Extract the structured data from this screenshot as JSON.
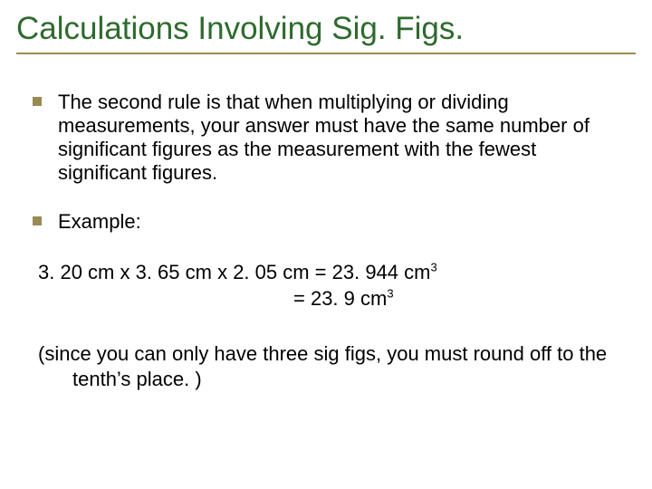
{
  "colors": {
    "title": "#2e6a2e",
    "underline": "#9a8b54",
    "bullet": "#9a8b54",
    "body": "#000000",
    "background": "#ffffff"
  },
  "title": "Calculations Involving Sig. Figs.",
  "bullets": [
    {
      "text": "The second rule is that when multiplying or dividing measurements, your answer must have the same number of significant figures as the measurement with the fewest significant figures."
    },
    {
      "text": "Example:"
    }
  ],
  "calculation": {
    "line1_prefix": "3. 20 cm x 3. 65 cm x 2. 05 cm = 23. 944 cm",
    "line1_exp": "3",
    "line2_prefix": "= 23. 9 cm",
    "line2_exp": "3"
  },
  "note": "(since you can only have three sig figs, you must round off to the tenth’s place. )"
}
